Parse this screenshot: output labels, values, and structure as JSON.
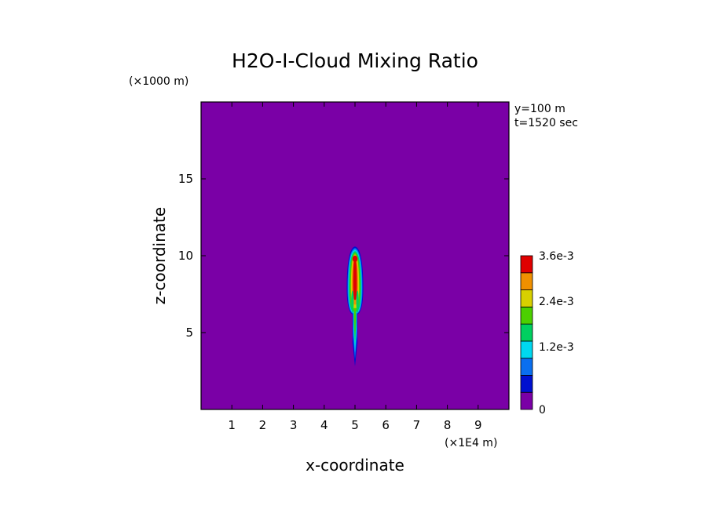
{
  "chart_data": {
    "type": "heatmap",
    "title": "H2O-I-Cloud Mixing Ratio",
    "xlabel": "x-coordinate",
    "ylabel": "z-coordinate",
    "x_scale_note": "(×1E4 m)",
    "y_scale_note": "(×1000 m)",
    "info_lines": [
      "y=100 m",
      "t=1520 sec"
    ],
    "xlim": [
      0,
      10
    ],
    "ylim": [
      0,
      20
    ],
    "x_ticks": [
      1,
      2,
      3,
      4,
      5,
      6,
      7,
      8,
      9
    ],
    "y_ticks": [
      5,
      10,
      15
    ],
    "background_value": 0,
    "plume": {
      "center_x": 5.0,
      "stem_bottom_z": 2.8,
      "stem_top_z": 6.5,
      "head_bottom_z": 6.2,
      "head_top_z": 10.6,
      "max_z": 9.8
    },
    "colorbar": {
      "min": 0,
      "max": 0.0036,
      "labels": [
        {
          "value": 0,
          "text": "0"
        },
        {
          "value": 0.0012,
          "text": "1.2e-3"
        },
        {
          "value": 0.0024,
          "text": "2.4e-3"
        },
        {
          "value": 0.0036,
          "text": "3.6e-3"
        }
      ],
      "colors": [
        "#7a00a6",
        "#0010d0",
        "#0a6ff0",
        "#00d8f0",
        "#00d060",
        "#4cd000",
        "#d8d000",
        "#f09000",
        "#e00000"
      ]
    }
  }
}
